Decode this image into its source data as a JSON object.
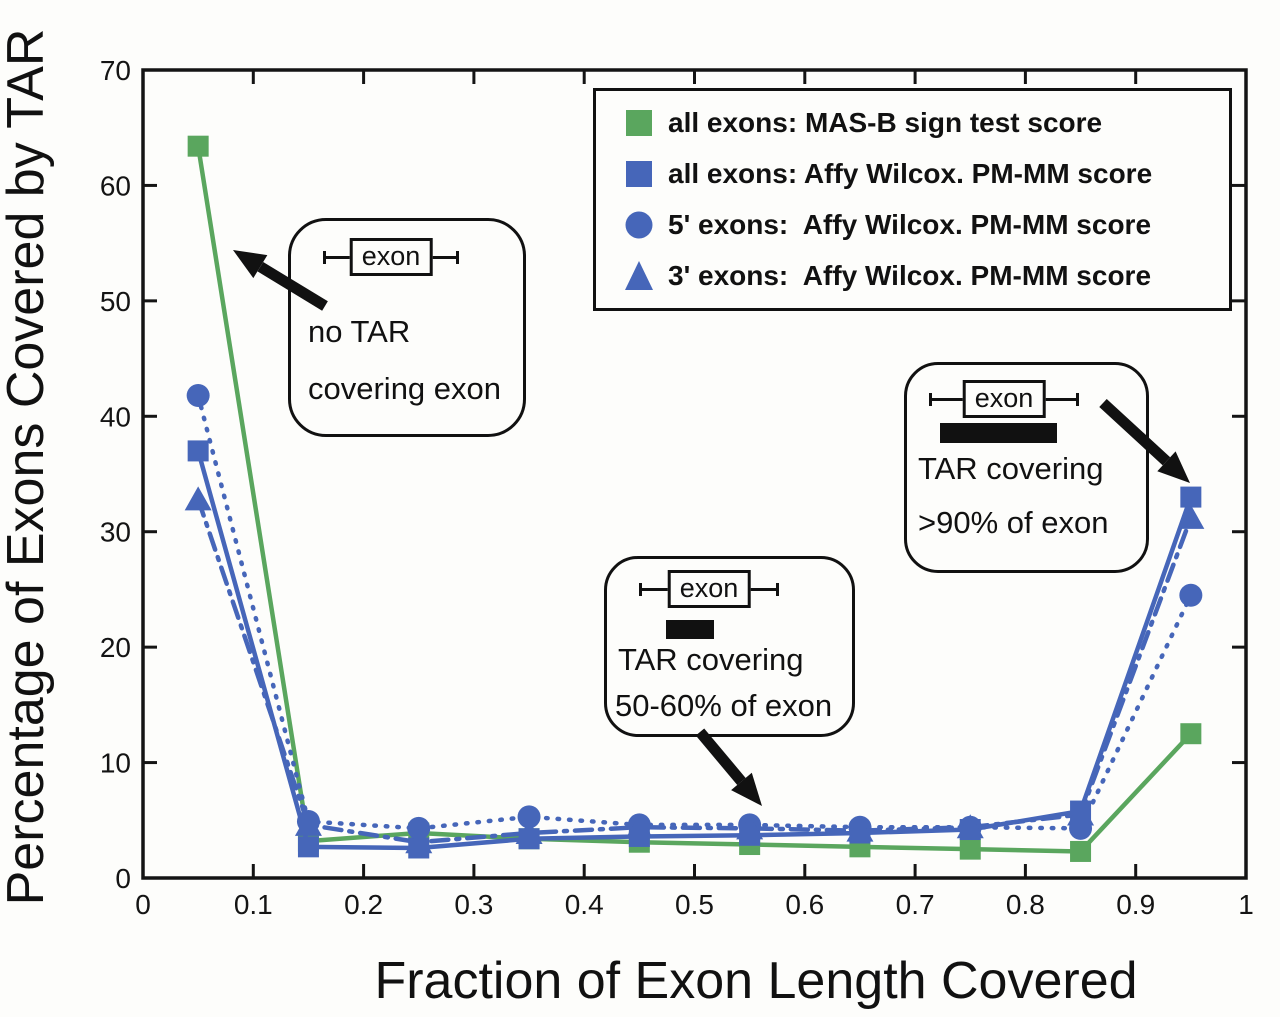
{
  "figure": {
    "y_axis_title": "Percentage of Exons Covered by TAR",
    "x_axis_title": "Fraction of Exon Length Covered"
  },
  "legend": {
    "items": [
      {
        "label": "all exons: MAS-B sign test score"
      },
      {
        "label": "all exons: Affy Wilcox. PM-MM score"
      },
      {
        "label": "5' exons:  Affy Wilcox. PM-MM score"
      },
      {
        "label": "3' exons:  Affy Wilcox. PM-MM score"
      }
    ]
  },
  "callouts": {
    "no_tar": {
      "exon_label": "exon",
      "line1": "no TAR",
      "line2": "covering exon"
    },
    "mid": {
      "exon_label": "exon",
      "line1": "TAR covering",
      "line2": "50-60% of exon"
    },
    "high": {
      "exon_label": "exon",
      "line1": "TAR covering",
      "line2": ">90% of exon"
    }
  },
  "chart_data": {
    "type": "line",
    "title": "",
    "xlabel": "Fraction of Exon Length Covered",
    "ylabel": "Percentage of Exons Covered by TAR",
    "xlim": [
      0,
      1
    ],
    "ylim": [
      0,
      70
    ],
    "grid": false,
    "legend_position": "top-right",
    "xticks": {
      "values": [
        0,
        0.1,
        0.2,
        0.3,
        0.4,
        0.5,
        0.6,
        0.7,
        0.8,
        0.9,
        1
      ],
      "labels": [
        "0",
        "0.1",
        "0.2",
        "0.3",
        "0.4",
        "0.5",
        "0.6",
        "0.7",
        "0.8",
        "0.9",
        "1"
      ]
    },
    "yticks": {
      "values": [
        0,
        10,
        20,
        30,
        40,
        50,
        60,
        70
      ],
      "labels": [
        "0",
        "10",
        "20",
        "30",
        "40",
        "50",
        "60",
        "70"
      ]
    },
    "x": [
      0.05,
      0.15,
      0.25,
      0.35,
      0.45,
      0.55,
      0.65,
      0.75,
      0.85,
      0.95
    ],
    "series": [
      {
        "name": "all exons: MAS-B sign test score",
        "color": "#5aa65e",
        "marker": "square",
        "linestyle": "solid",
        "values": [
          63.4,
          3.2,
          3.9,
          3.4,
          3.1,
          2.9,
          2.7,
          2.5,
          2.3,
          12.5
        ]
      },
      {
        "name": "all exons: Affy Wilcox. PM-MM score",
        "color": "#4666b9",
        "marker": "square",
        "linestyle": "solid",
        "values": [
          37.0,
          2.7,
          2.6,
          3.4,
          3.6,
          3.7,
          3.9,
          4.2,
          5.8,
          33.0
        ]
      },
      {
        "name": "5' exons:  Affy Wilcox. PM-MM score",
        "color": "#4666b9",
        "marker": "circle",
        "linestyle": "dotted",
        "values": [
          41.8,
          4.9,
          4.3,
          5.3,
          4.6,
          4.6,
          4.4,
          4.4,
          4.3,
          24.5
        ]
      },
      {
        "name": "3' exons:  Affy Wilcox. PM-MM score",
        "color": "#4666b9",
        "marker": "triangle",
        "linestyle": "dashdot",
        "values": [
          32.8,
          4.6,
          3.1,
          3.9,
          4.4,
          4.3,
          4.1,
          4.4,
          5.5,
          31.2
        ]
      }
    ]
  }
}
